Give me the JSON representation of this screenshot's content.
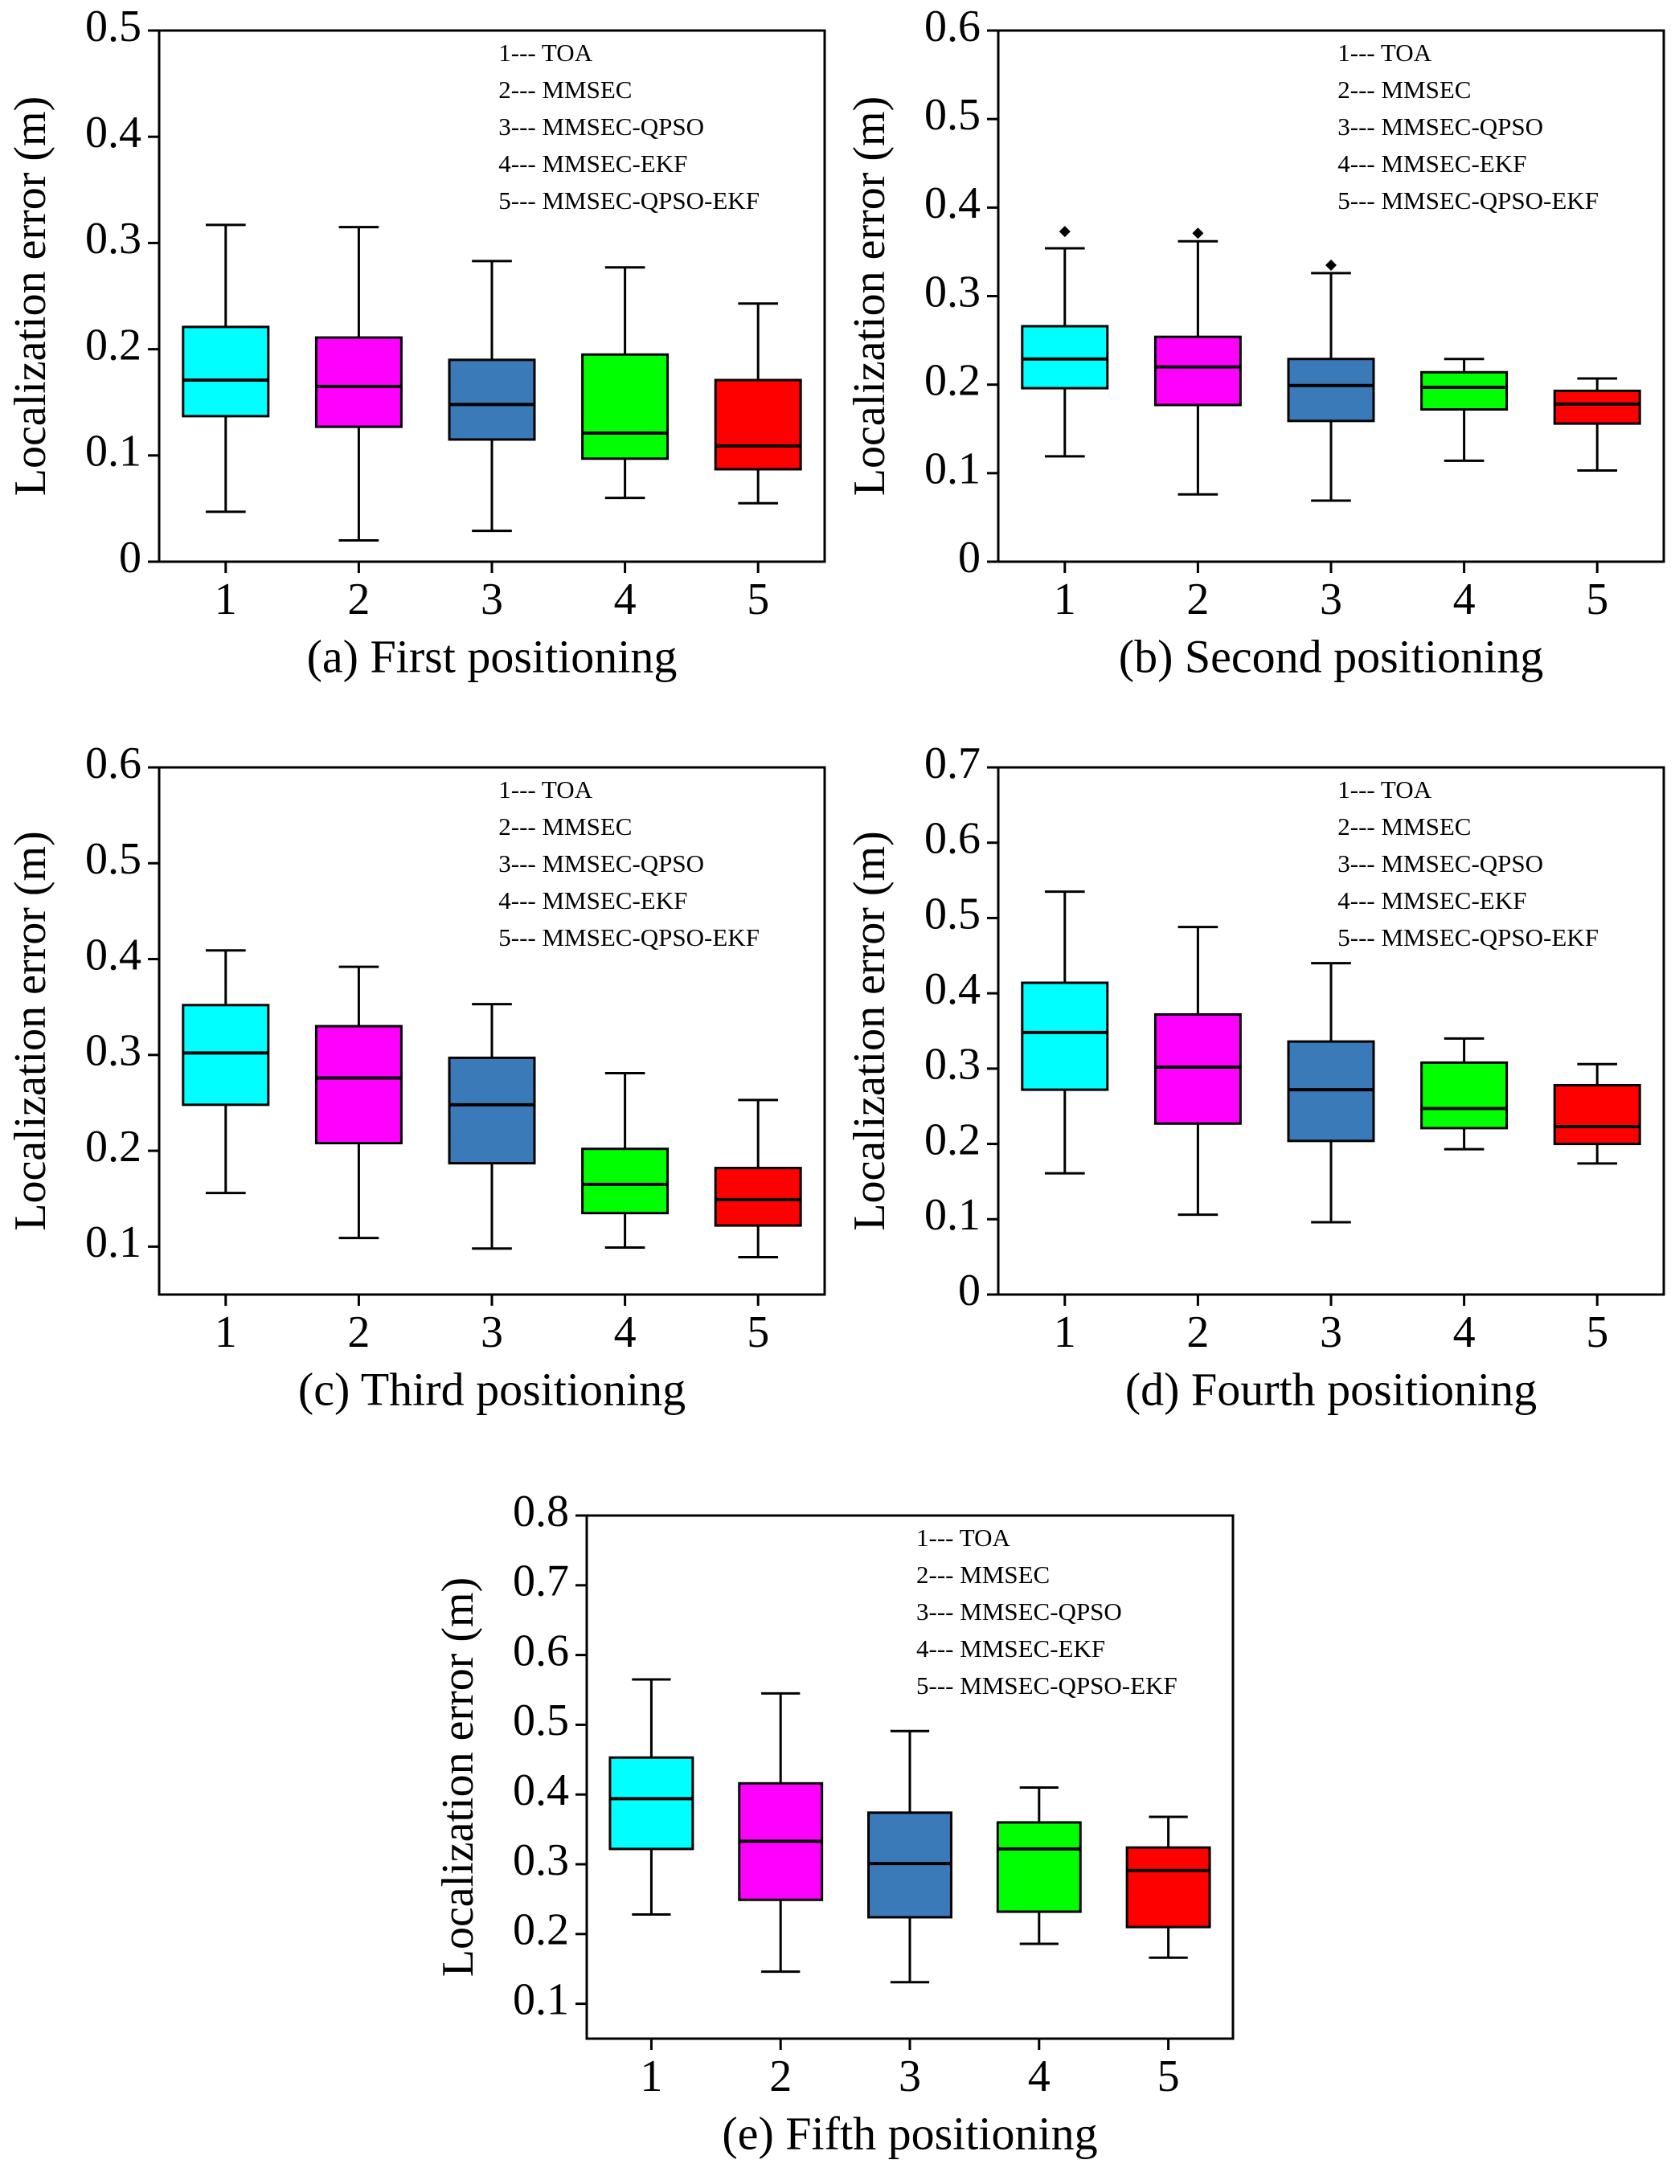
{
  "chart_data": [
    {
      "type": "box",
      "caption": "(a) First positioning",
      "ylabel": "Localization error (m)",
      "categories": [
        "1",
        "2",
        "3",
        "4",
        "5"
      ],
      "colors": [
        "#00ffff",
        "#ff00ff",
        "#3a7ab8",
        "#00ff00",
        "#ff0000"
      ],
      "legend": [
        "1--- TOA",
        "2--- MMSEC",
        "3--- MMSEC-QPSO",
        "4--- MMSEC-EKF",
        "5--- MMSEC-QPSO-EKF"
      ],
      "min": [
        0.047,
        0.02,
        0.029,
        0.06,
        0.055
      ],
      "q1": [
        0.137,
        0.127,
        0.115,
        0.097,
        0.087
      ],
      "median": [
        0.171,
        0.165,
        0.148,
        0.121,
        0.109
      ],
      "q3": [
        0.221,
        0.211,
        0.19,
        0.195,
        0.171
      ],
      "max": [
        0.317,
        0.315,
        0.283,
        0.277,
        0.243
      ],
      "ylim": [
        0,
        0.5
      ],
      "yticks": [
        0,
        0.1,
        0.2,
        0.3,
        0.4,
        0.5
      ]
    },
    {
      "type": "box",
      "caption": "(b) Second positioning",
      "ylabel": "Localization error (m)",
      "categories": [
        "1",
        "2",
        "3",
        "4",
        "5"
      ],
      "colors": [
        "#00ffff",
        "#ff00ff",
        "#3a7ab8",
        "#00ff00",
        "#ff0000"
      ],
      "legend": [
        "1--- TOA",
        "2--- MMSEC",
        "3--- MMSEC-QPSO",
        "4--- MMSEC-EKF",
        "5--- MMSEC-QPSO-EKF"
      ],
      "min": [
        0.119,
        0.076,
        0.069,
        0.114,
        0.103
      ],
      "q1": [
        0.196,
        0.177,
        0.159,
        0.172,
        0.156
      ],
      "median": [
        0.229,
        0.22,
        0.199,
        0.197,
        0.178
      ],
      "q3": [
        0.266,
        0.254,
        0.229,
        0.214,
        0.193
      ],
      "max": [
        0.354,
        0.362,
        0.326,
        0.229,
        0.207
      ],
      "outliers": [
        [
          0.373
        ],
        [
          0.371
        ],
        [
          0.335
        ],
        [],
        []
      ],
      "ylim": [
        0,
        0.6
      ],
      "yticks": [
        0,
        0.1,
        0.2,
        0.3,
        0.4,
        0.5,
        0.6
      ]
    },
    {
      "type": "box",
      "caption": "(c) Third positioning",
      "ylabel": "Localization error (m)",
      "categories": [
        "1",
        "2",
        "3",
        "4",
        "5"
      ],
      "colors": [
        "#00ffff",
        "#ff00ff",
        "#3a7ab8",
        "#00ff00",
        "#ff0000"
      ],
      "legend": [
        "1--- TOA",
        "2--- MMSEC",
        "3--- MMSEC-QPSO",
        "4--- MMSEC-EKF",
        "5--- MMSEC-QPSO-EKF"
      ],
      "min": [
        0.156,
        0.109,
        0.098,
        0.099,
        0.089
      ],
      "q1": [
        0.248,
        0.208,
        0.187,
        0.135,
        0.122
      ],
      "median": [
        0.302,
        0.276,
        0.248,
        0.165,
        0.149
      ],
      "q3": [
        0.352,
        0.33,
        0.297,
        0.202,
        0.182
      ],
      "max": [
        0.409,
        0.392,
        0.353,
        0.281,
        0.253
      ],
      "ylim": [
        0.05,
        0.6
      ],
      "yticks": [
        0.1,
        0.2,
        0.3,
        0.4,
        0.5,
        0.6
      ]
    },
    {
      "type": "box",
      "caption": "(d) Fourth positioning",
      "ylabel": "Localization error (m)",
      "categories": [
        "1",
        "2",
        "3",
        "4",
        "5"
      ],
      "colors": [
        "#00ffff",
        "#ff00ff",
        "#3a7ab8",
        "#00ff00",
        "#ff0000"
      ],
      "legend": [
        "1--- TOA",
        "2--- MMSEC",
        "3--- MMSEC-QPSO",
        "4--- MMSEC-EKF",
        "5--- MMSEC-QPSO-EKF"
      ],
      "min": [
        0.161,
        0.106,
        0.096,
        0.193,
        0.174
      ],
      "q1": [
        0.272,
        0.227,
        0.204,
        0.221,
        0.2
      ],
      "median": [
        0.348,
        0.302,
        0.272,
        0.247,
        0.223
      ],
      "q3": [
        0.414,
        0.372,
        0.336,
        0.308,
        0.278
      ],
      "max": [
        0.535,
        0.488,
        0.44,
        0.34,
        0.306
      ],
      "ylim": [
        0,
        0.7
      ],
      "yticks": [
        0,
        0.1,
        0.2,
        0.3,
        0.4,
        0.5,
        0.6,
        0.7
      ]
    },
    {
      "type": "box",
      "caption": "(e) Fifth positioning",
      "ylabel": "Localization error (m)",
      "categories": [
        "1",
        "2",
        "3",
        "4",
        "5"
      ],
      "colors": [
        "#00ffff",
        "#ff00ff",
        "#3a7ab8",
        "#00ff00",
        "#ff0000"
      ],
      "legend": [
        "1--- TOA",
        "2--- MMSEC",
        "3--- MMSEC-QPSO",
        "4--- MMSEC-EKF",
        "5--- MMSEC-QPSO-EKF"
      ],
      "min": [
        0.228,
        0.146,
        0.131,
        0.186,
        0.166
      ],
      "q1": [
        0.322,
        0.249,
        0.224,
        0.232,
        0.21
      ],
      "median": [
        0.394,
        0.333,
        0.301,
        0.322,
        0.291
      ],
      "q3": [
        0.453,
        0.416,
        0.374,
        0.36,
        0.324
      ],
      "max": [
        0.565,
        0.545,
        0.491,
        0.41,
        0.368
      ],
      "ylim": [
        0.05,
        0.8
      ],
      "yticks": [
        0.1,
        0.2,
        0.3,
        0.4,
        0.5,
        0.6,
        0.7,
        0.8
      ]
    }
  ]
}
